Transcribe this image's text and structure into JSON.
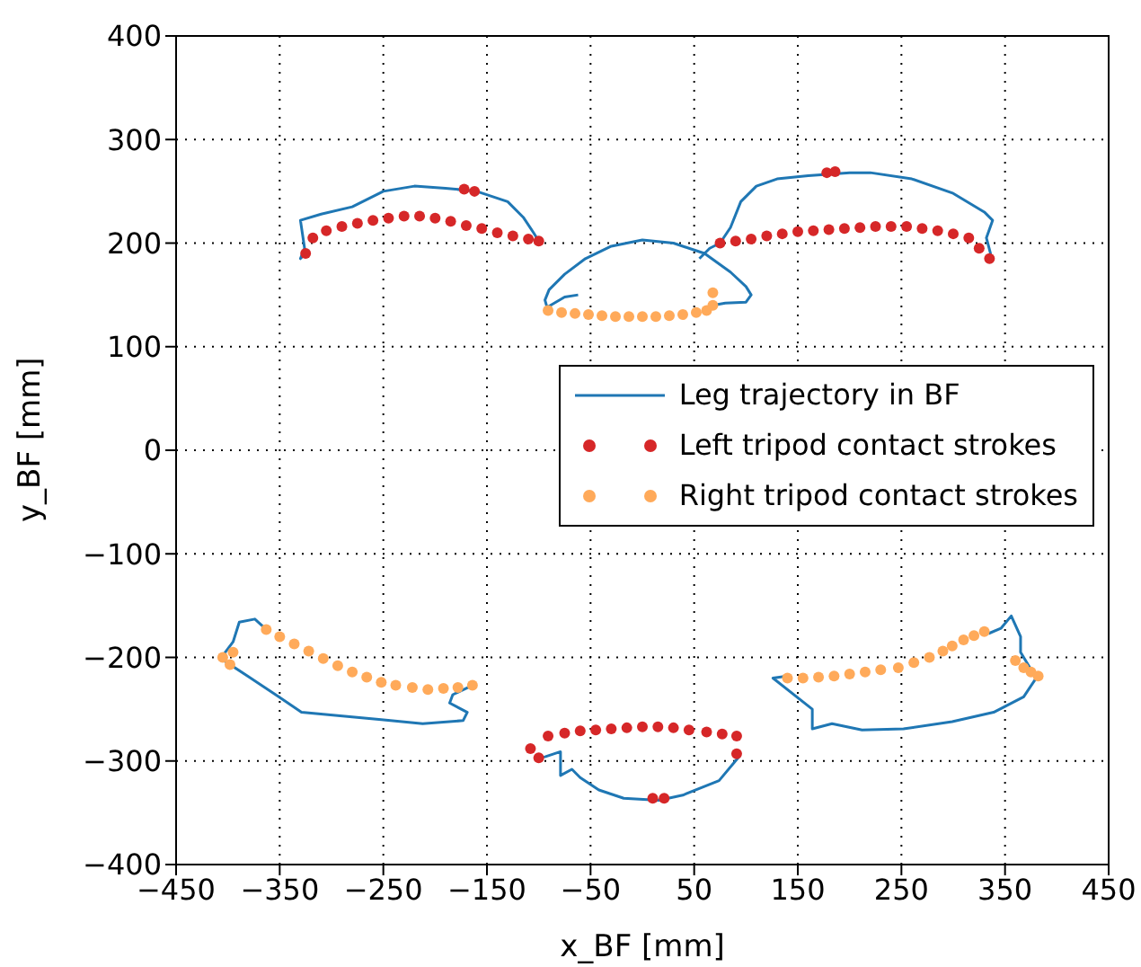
{
  "chart_data": {
    "type": "line",
    "xlabel": "x_BF [mm]",
    "ylabel": "y_BF [mm]",
    "xlim": [
      -450,
      450
    ],
    "xticks": [
      -450,
      -350,
      -250,
      -150,
      -50,
      50,
      150,
      250,
      350,
      450
    ],
    "ylim": [
      -400,
      400
    ],
    "yticks": [
      -400,
      -300,
      -200,
      -100,
      0,
      100,
      200,
      300,
      400
    ],
    "grid": true,
    "legend": "right",
    "series": [
      {
        "name": "Leg trajectory in BF",
        "marker": "none",
        "color": "#1f77b4",
        "x": [
          -325,
          -330,
          -326,
          -330,
          -310,
          -280,
          -250,
          -220,
          -190,
          -160,
          -130,
          -115,
          -105,
          -100,
          null,
          55,
          65,
          75,
          85,
          95,
          110,
          130,
          160,
          200,
          220,
          260,
          300,
          330,
          338,
          332,
          336,
          335,
          null,
          -62,
          -75,
          -92,
          -94,
          -90,
          -75,
          -55,
          -30,
          0,
          30,
          60,
          85,
          100,
          105,
          100,
          80,
          68,
          null,
          -363,
          -374,
          -389,
          -395,
          -407,
          -381,
          -351,
          -329,
          -252,
          -212,
          -173,
          -169,
          -186,
          -183,
          -164,
          null,
          140,
          126,
          164,
          164,
          183,
          212,
          252,
          299,
          339,
          368,
          380,
          365,
          365,
          356,
          346,
          334,
          null,
          91,
          94,
          74,
          39,
          16,
          -18,
          -42,
          -60,
          -68,
          -79,
          -79,
          -94,
          -100
        ],
        "values": [
          190,
          185,
          195,
          222,
          228,
          235,
          250,
          255,
          253,
          250,
          240,
          225,
          210,
          202,
          null,
          185,
          195,
          200,
          215,
          240,
          255,
          262,
          265,
          268,
          268,
          262,
          248,
          230,
          222,
          205,
          190,
          185,
          null,
          150,
          148,
          138,
          145,
          155,
          170,
          185,
          197,
          203,
          200,
          190,
          172,
          158,
          150,
          143,
          142,
          140,
          null,
          -173,
          -163,
          -166,
          -185,
          -201,
          -218,
          -238,
          -253,
          -260,
          -264,
          -261,
          -253,
          -244,
          -236,
          -227,
          null,
          -218,
          -220,
          -250,
          -269,
          -264,
          -270,
          -269,
          -262,
          -253,
          -238,
          -220,
          -195,
          -180,
          -160,
          -172,
          -177,
          null,
          -293,
          -295,
          -319,
          -333,
          -338,
          -336,
          -328,
          -316,
          -308,
          -314,
          -291,
          -296,
          -297
        ]
      },
      {
        "name": "Left tripod contact strokes",
        "type": "scatter",
        "marker": "circle",
        "color": "#d62728",
        "x": [
          -325,
          -318,
          -305,
          -290,
          -275,
          -260,
          -245,
          -230,
          -215,
          -200,
          -185,
          -170,
          -155,
          -140,
          -125,
          -110,
          -100,
          -172,
          -162,
          75,
          90,
          105,
          120,
          135,
          150,
          165,
          180,
          195,
          210,
          225,
          240,
          255,
          270,
          285,
          300,
          315,
          325,
          335,
          178,
          186,
          -108,
          -100,
          -91,
          -75,
          -60,
          -45,
          -30,
          -15,
          0,
          15,
          30,
          45,
          62,
          77,
          91,
          91,
          10,
          21
        ],
        "values": [
          190,
          205,
          212,
          216,
          219,
          222,
          224,
          226,
          226,
          224,
          221,
          217,
          214,
          210,
          207,
          204,
          202,
          252,
          250,
          200,
          202,
          204,
          207,
          209,
          211,
          212,
          213,
          214,
          215,
          216,
          216,
          216,
          214,
          212,
          209,
          205,
          195,
          185,
          268,
          269,
          -288,
          -297,
          -276,
          -273,
          -271,
          -270,
          -269,
          -268,
          -267,
          -267,
          -268,
          -270,
          -272,
          -274,
          -276,
          -293,
          -336,
          -336
        ]
      },
      {
        "name": "Right tripod contact strokes",
        "type": "scatter",
        "marker": "circle",
        "color": "#ffaa5a",
        "x": [
          -91,
          -78,
          -65,
          -52,
          -39,
          -26,
          -13,
          0,
          13,
          26,
          39,
          52,
          62,
          68,
          68,
          -405,
          -398,
          -395,
          -363,
          -350,
          -336,
          -322,
          -308,
          -294,
          -280,
          -266,
          -252,
          -238,
          -222,
          -207,
          -192,
          -178,
          -164,
          140,
          155,
          170,
          185,
          200,
          215,
          230,
          247,
          262,
          277,
          290,
          299,
          310,
          320,
          330,
          360,
          368,
          375,
          382
        ],
        "values": [
          135,
          133,
          132,
          131,
          130,
          129,
          129,
          129,
          129,
          130,
          131,
          133,
          135,
          140,
          152,
          -200,
          -207,
          -195,
          -173,
          -180,
          -187,
          -194,
          -201,
          -208,
          -214,
          -219,
          -224,
          -227,
          -229,
          -231,
          -230,
          -229,
          -227,
          -220,
          -220,
          -219,
          -218,
          -216,
          -214,
          -212,
          -210,
          -205,
          -200,
          -194,
          -189,
          -183,
          -179,
          -175,
          -203,
          -210,
          -214,
          -218
        ]
      }
    ]
  }
}
